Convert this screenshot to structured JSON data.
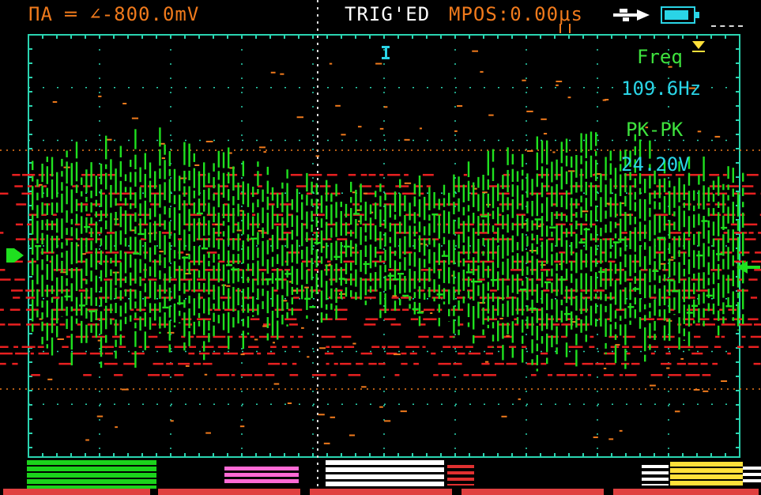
{
  "header": {
    "channel_status": "ΠA ═ ∠-800.0mV",
    "trig_status": "TRIG'ED",
    "mpos": "MPOS:0.00μs",
    "icons": [
      "usb-icon",
      "battery-icon"
    ]
  },
  "measurements": {
    "freq_label": "Freq",
    "freq_value": "109.6Hz",
    "pkpk_label": "PK-PK",
    "pkpk_value": "24.20V"
  },
  "colors": {
    "grid": "#2ad4b0",
    "trace_ch1": "#1fe01f",
    "trace_ch2": "#e82020",
    "accent_orange": "#f07a1c",
    "trigger": "#ffe03a"
  }
}
